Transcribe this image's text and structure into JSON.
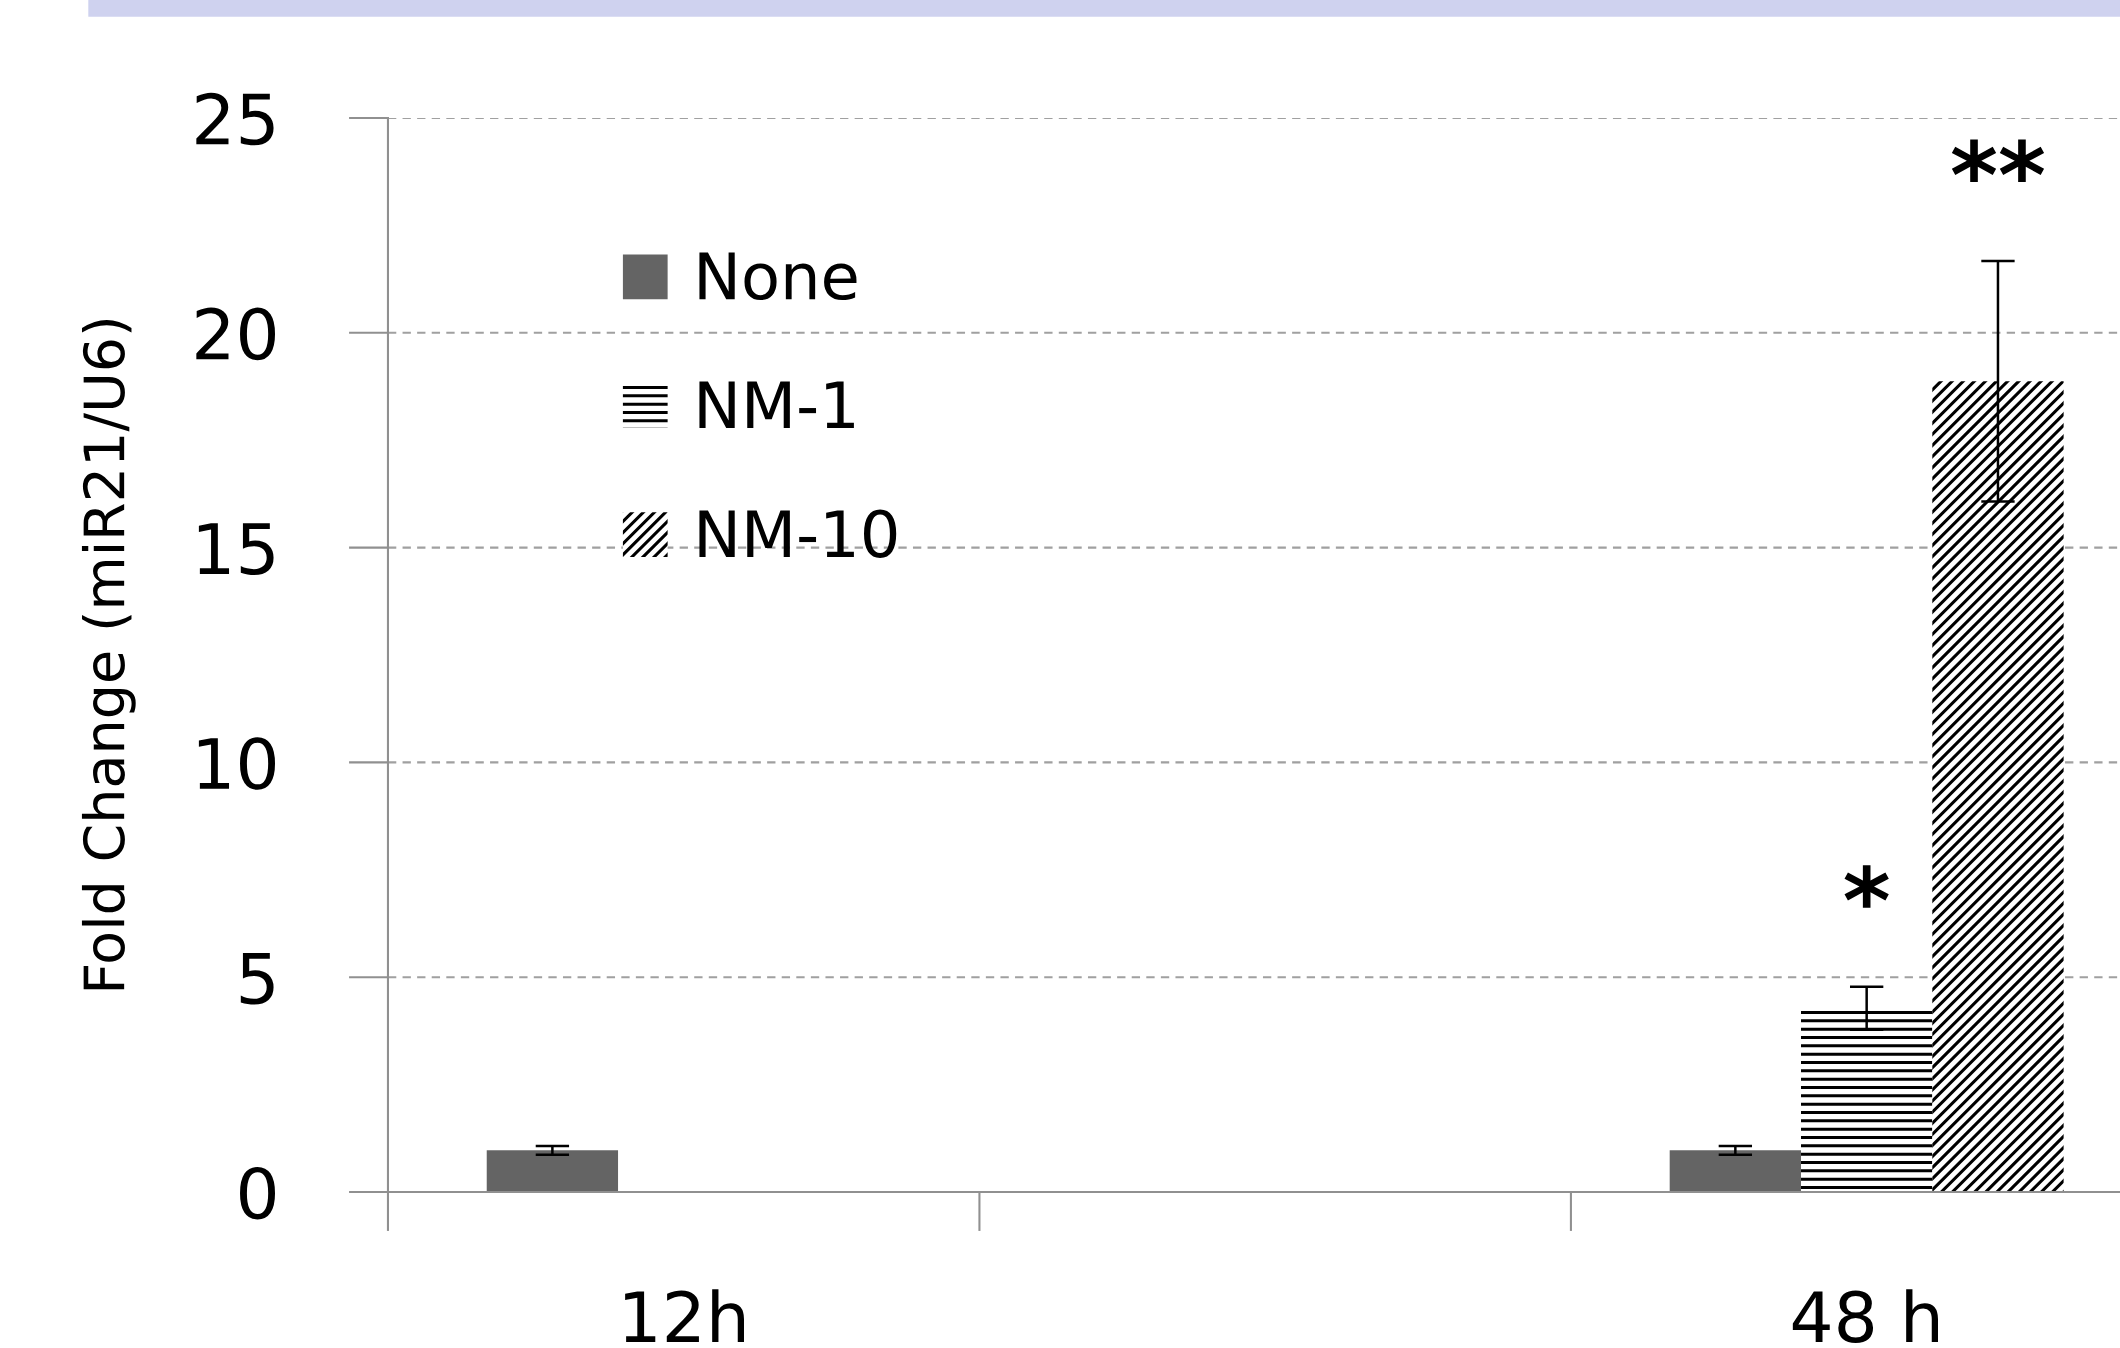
{
  "chart_data": {
    "type": "bar",
    "ylabel": "Fold Change (miR21/U6)",
    "categories": [
      "12h",
      null,
      "48 h"
    ],
    "series": [
      {
        "name": "None",
        "color": "#646464",
        "values": [
          0.97,
          null,
          0.97
        ],
        "errors": [
          0.1,
          null,
          0.1
        ]
      },
      {
        "name": "NM-1",
        "color": "#ffffff",
        "values": [
          0.03,
          null,
          4.28
        ],
        "errors": [
          null,
          null,
          0.5
        ],
        "value_labels": [
          null,
          null,
          "*"
        ]
      },
      {
        "name": "NM-10",
        "color": "#ffffff",
        "values": [
          0,
          null,
          18.87
        ],
        "errors": [
          null,
          null,
          2.8
        ],
        "value_labels": [
          null,
          null,
          "**"
        ]
      }
    ],
    "ylim": [
      0,
      25
    ],
    "yticks": [
      0,
      5,
      10,
      15,
      20,
      25
    ],
    "grid": "y",
    "legend": "top left"
  }
}
